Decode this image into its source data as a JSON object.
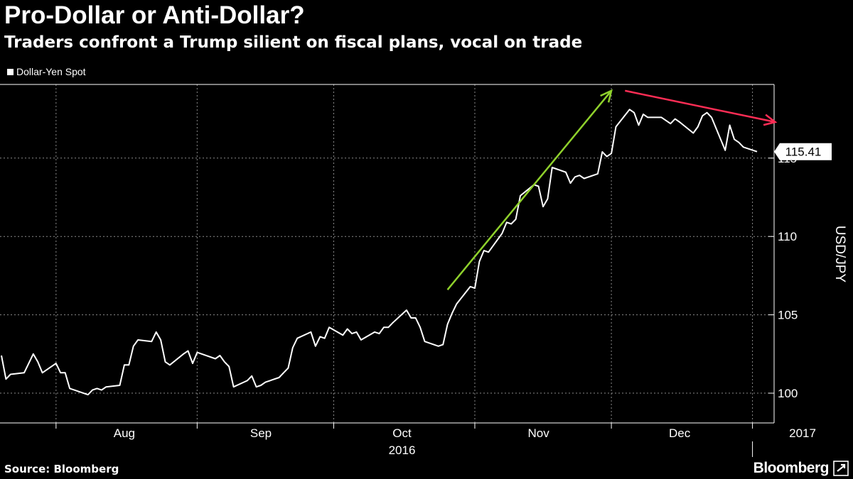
{
  "title": "Pro-Dollar or Anti-Dollar?",
  "subtitle": "Traders confront a Trump silient on fiscal plans, vocal on trade",
  "source": "Source: Bloomberg",
  "brand": "Bloomberg",
  "chart_data": {
    "type": "line",
    "title": "Pro-Dollar or Anti-Dollar?",
    "subtitle": "Traders confront a Trump silient on fiscal plans, vocal on trade",
    "ylabel": "USD/JPY",
    "xlabel": "",
    "ylim": [
      98.1,
      119.7
    ],
    "yticks": [
      100,
      105,
      110,
      115
    ],
    "grid": true,
    "legend_placement": "top-left",
    "last_value_label": "115.41",
    "colors": {
      "background": "#000000",
      "line": "#ffffff",
      "grid": "#8a8a8a",
      "up_arrow": "#8fd12c",
      "down_arrow": "#ff2d55"
    },
    "x_month_labels": [
      {
        "label": "Aug",
        "date": "2016-08-16"
      },
      {
        "label": "Sep",
        "date": "2016-09-15"
      },
      {
        "label": "Oct",
        "date": "2016-10-16"
      },
      {
        "label": "Nov",
        "date": "2016-11-15"
      },
      {
        "label": "Dec",
        "date": "2016-12-16"
      },
      {
        "label": "2017",
        "date": "2017-01-12"
      }
    ],
    "x_year_labels": [
      {
        "label": "2016",
        "date": "2016-10-16"
      }
    ],
    "x_gridlines": [
      "2016-08-01",
      "2016-09-01",
      "2016-10-01",
      "2016-11-01",
      "2016-12-01",
      "2017-01-01"
    ],
    "year_separator": "2017-01-01",
    "series": [
      {
        "name": "Dollar-Yen Spot",
        "color": "#ffffff",
        "points": [
          [
            "2016-07-20",
            102.4
          ],
          [
            "2016-07-21",
            100.9
          ],
          [
            "2016-07-22",
            101.2
          ],
          [
            "2016-07-25",
            101.3
          ],
          [
            "2016-07-26",
            101.9
          ],
          [
            "2016-07-27",
            102.5
          ],
          [
            "2016-07-28",
            102.0
          ],
          [
            "2016-07-29",
            101.3
          ],
          [
            "2016-08-01",
            101.9
          ],
          [
            "2016-08-02",
            101.3
          ],
          [
            "2016-08-03",
            101.3
          ],
          [
            "2016-08-04",
            100.3
          ],
          [
            "2016-08-05",
            100.2
          ],
          [
            "2016-08-08",
            99.9
          ],
          [
            "2016-08-09",
            100.2
          ],
          [
            "2016-08-10",
            100.3
          ],
          [
            "2016-08-11",
            100.2
          ],
          [
            "2016-08-12",
            100.4
          ],
          [
            "2016-08-15",
            100.5
          ],
          [
            "2016-08-16",
            101.8
          ],
          [
            "2016-08-17",
            101.8
          ],
          [
            "2016-08-18",
            103.0
          ],
          [
            "2016-08-19",
            103.4
          ],
          [
            "2016-08-22",
            103.3
          ],
          [
            "2016-08-23",
            103.9
          ],
          [
            "2016-08-24",
            103.4
          ],
          [
            "2016-08-25",
            102.0
          ],
          [
            "2016-08-26",
            101.8
          ],
          [
            "2016-08-29",
            102.5
          ],
          [
            "2016-08-30",
            102.7
          ],
          [
            "2016-08-31",
            101.9
          ],
          [
            "2016-09-01",
            102.6
          ],
          [
            "2016-09-02",
            102.5
          ],
          [
            "2016-09-05",
            102.2
          ],
          [
            "2016-09-06",
            102.4
          ],
          [
            "2016-09-07",
            102.0
          ],
          [
            "2016-09-08",
            101.7
          ],
          [
            "2016-09-09",
            100.4
          ],
          [
            "2016-09-12",
            100.8
          ],
          [
            "2016-09-13",
            101.1
          ],
          [
            "2016-09-14",
            100.4
          ],
          [
            "2016-09-15",
            100.5
          ],
          [
            "2016-09-16",
            100.7
          ],
          [
            "2016-09-19",
            101.0
          ],
          [
            "2016-09-20",
            101.3
          ],
          [
            "2016-09-21",
            101.6
          ],
          [
            "2016-09-22",
            102.9
          ],
          [
            "2016-09-23",
            103.5
          ],
          [
            "2016-09-26",
            103.9
          ],
          [
            "2016-09-27",
            103.0
          ],
          [
            "2016-09-28",
            103.6
          ],
          [
            "2016-09-29",
            103.5
          ],
          [
            "2016-09-30",
            104.2
          ],
          [
            "2016-10-03",
            103.7
          ],
          [
            "2016-10-04",
            104.1
          ],
          [
            "2016-10-05",
            103.8
          ],
          [
            "2016-10-06",
            103.9
          ],
          [
            "2016-10-07",
            103.4
          ],
          [
            "2016-10-10",
            103.9
          ],
          [
            "2016-10-11",
            103.8
          ],
          [
            "2016-10-12",
            104.2
          ],
          [
            "2016-10-13",
            104.2
          ],
          [
            "2016-10-14",
            104.5
          ],
          [
            "2016-10-17",
            105.3
          ],
          [
            "2016-10-18",
            104.8
          ],
          [
            "2016-10-19",
            104.8
          ],
          [
            "2016-10-20",
            104.2
          ],
          [
            "2016-10-21",
            103.3
          ],
          [
            "2016-10-24",
            103.0
          ],
          [
            "2016-10-25",
            103.1
          ],
          [
            "2016-10-26",
            104.4
          ],
          [
            "2016-10-27",
            105.1
          ],
          [
            "2016-10-28",
            105.7
          ],
          [
            "2016-10-31",
            106.8
          ],
          [
            "2016-11-01",
            106.7
          ],
          [
            "2016-11-02",
            108.4
          ],
          [
            "2016-11-03",
            109.1
          ],
          [
            "2016-11-04",
            109.0
          ],
          [
            "2016-11-07",
            110.2
          ],
          [
            "2016-11-08",
            110.9
          ],
          [
            "2016-11-09",
            110.8
          ],
          [
            "2016-11-10",
            111.1
          ],
          [
            "2016-11-11",
            112.6
          ],
          [
            "2016-11-14",
            113.3
          ],
          [
            "2016-11-15",
            113.2
          ],
          [
            "2016-11-16",
            111.9
          ],
          [
            "2016-11-17",
            112.4
          ],
          [
            "2016-11-18",
            114.4
          ],
          [
            "2016-11-21",
            114.1
          ],
          [
            "2016-11-22",
            113.4
          ],
          [
            "2016-11-23",
            113.8
          ],
          [
            "2016-11-24",
            113.9
          ],
          [
            "2016-11-25",
            113.7
          ],
          [
            "2016-11-28",
            114.0
          ],
          [
            "2016-11-29",
            115.4
          ],
          [
            "2016-11-30",
            115.1
          ],
          [
            "2016-12-01",
            115.3
          ],
          [
            "2016-12-02",
            117.0
          ],
          [
            "2016-12-05",
            118.1
          ],
          [
            "2016-12-06",
            117.9
          ],
          [
            "2016-12-07",
            117.1
          ],
          [
            "2016-12-08",
            117.8
          ],
          [
            "2016-12-09",
            117.6
          ],
          [
            "2016-12-12",
            117.6
          ],
          [
            "2016-12-13",
            117.4
          ],
          [
            "2016-12-14",
            117.2
          ],
          [
            "2016-12-15",
            117.5
          ],
          [
            "2016-12-16",
            117.3
          ],
          [
            "2016-12-19",
            116.6
          ],
          [
            "2016-12-20",
            117.0
          ],
          [
            "2016-12-21",
            117.7
          ],
          [
            "2016-12-22",
            117.9
          ],
          [
            "2016-12-23",
            117.6
          ],
          [
            "2016-12-26",
            115.5
          ],
          [
            "2016-12-27",
            117.1
          ],
          [
            "2016-12-28",
            116.2
          ],
          [
            "2016-12-29",
            116.0
          ],
          [
            "2016-12-30",
            115.7
          ],
          [
            "2017-01-02",
            115.41
          ]
        ]
      }
    ],
    "annotations": [
      {
        "type": "arrow",
        "color": "#8fd12c",
        "from": [
          "2016-10-26",
          106.6
        ],
        "to": [
          "2016-12-01",
          119.3
        ]
      },
      {
        "type": "arrow",
        "color": "#ff2d55",
        "from": [
          "2016-12-04",
          119.3
        ],
        "to": [
          "2017-01-06",
          117.3
        ]
      }
    ]
  }
}
